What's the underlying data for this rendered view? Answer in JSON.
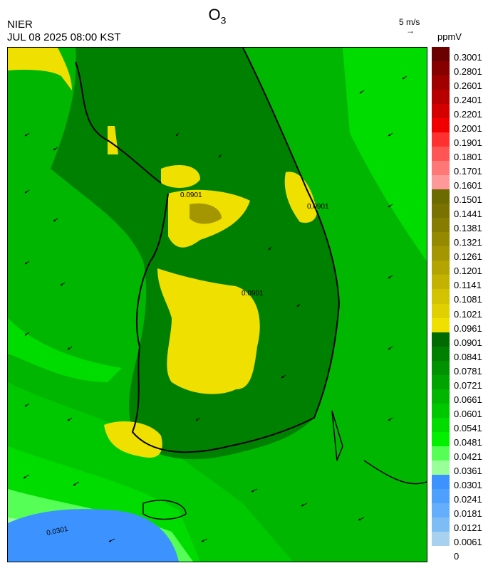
{
  "header": {
    "title_main": "O",
    "title_sub": "3",
    "org": "NIER",
    "datetime": "JUL 08 2025 08:00 KST",
    "vector_scale_label": "5 m/s",
    "unit": "ppmV"
  },
  "map": {
    "contour_labels": [
      "0.0901",
      "0.0901",
      "0.0901",
      "0.0301"
    ]
  },
  "legend": {
    "labels": [
      "0.3001",
      "0.2801",
      "0.2601",
      "0.2401",
      "0.2201",
      "0.2001",
      "0.1901",
      "0.1801",
      "0.1701",
      "0.1601",
      "0.1501",
      "0.1441",
      "0.1381",
      "0.1321",
      "0.1261",
      "0.1201",
      "0.1141",
      "0.1081",
      "0.1021",
      "0.0961",
      "0.0901",
      "0.0841",
      "0.0781",
      "0.0721",
      "0.0661",
      "0.0601",
      "0.0541",
      "0.0481",
      "0.0421",
      "0.0361",
      "0.0301",
      "0.0241",
      "0.0181",
      "0.0121",
      "0.0061",
      "0"
    ],
    "colors": [
      "#6b0000",
      "#870000",
      "#a00000",
      "#b90000",
      "#d40000",
      "#f00000",
      "#ff3030",
      "#ff5555",
      "#ff7777",
      "#ff9999",
      "#6b6b00",
      "#7a7200",
      "#857c00",
      "#958900",
      "#a49600",
      "#b3a400",
      "#c3b300",
      "#d2c200",
      "#e1d000",
      "#f0e000",
      "#006b00",
      "#008000",
      "#009200",
      "#00a400",
      "#00b600",
      "#00c800",
      "#00dc00",
      "#00f000",
      "#55ff55",
      "#99ff99",
      "#3c93ff",
      "#4ea0ff",
      "#64aefc",
      "#7ebcf5",
      "#a8d0ef"
    ]
  }
}
